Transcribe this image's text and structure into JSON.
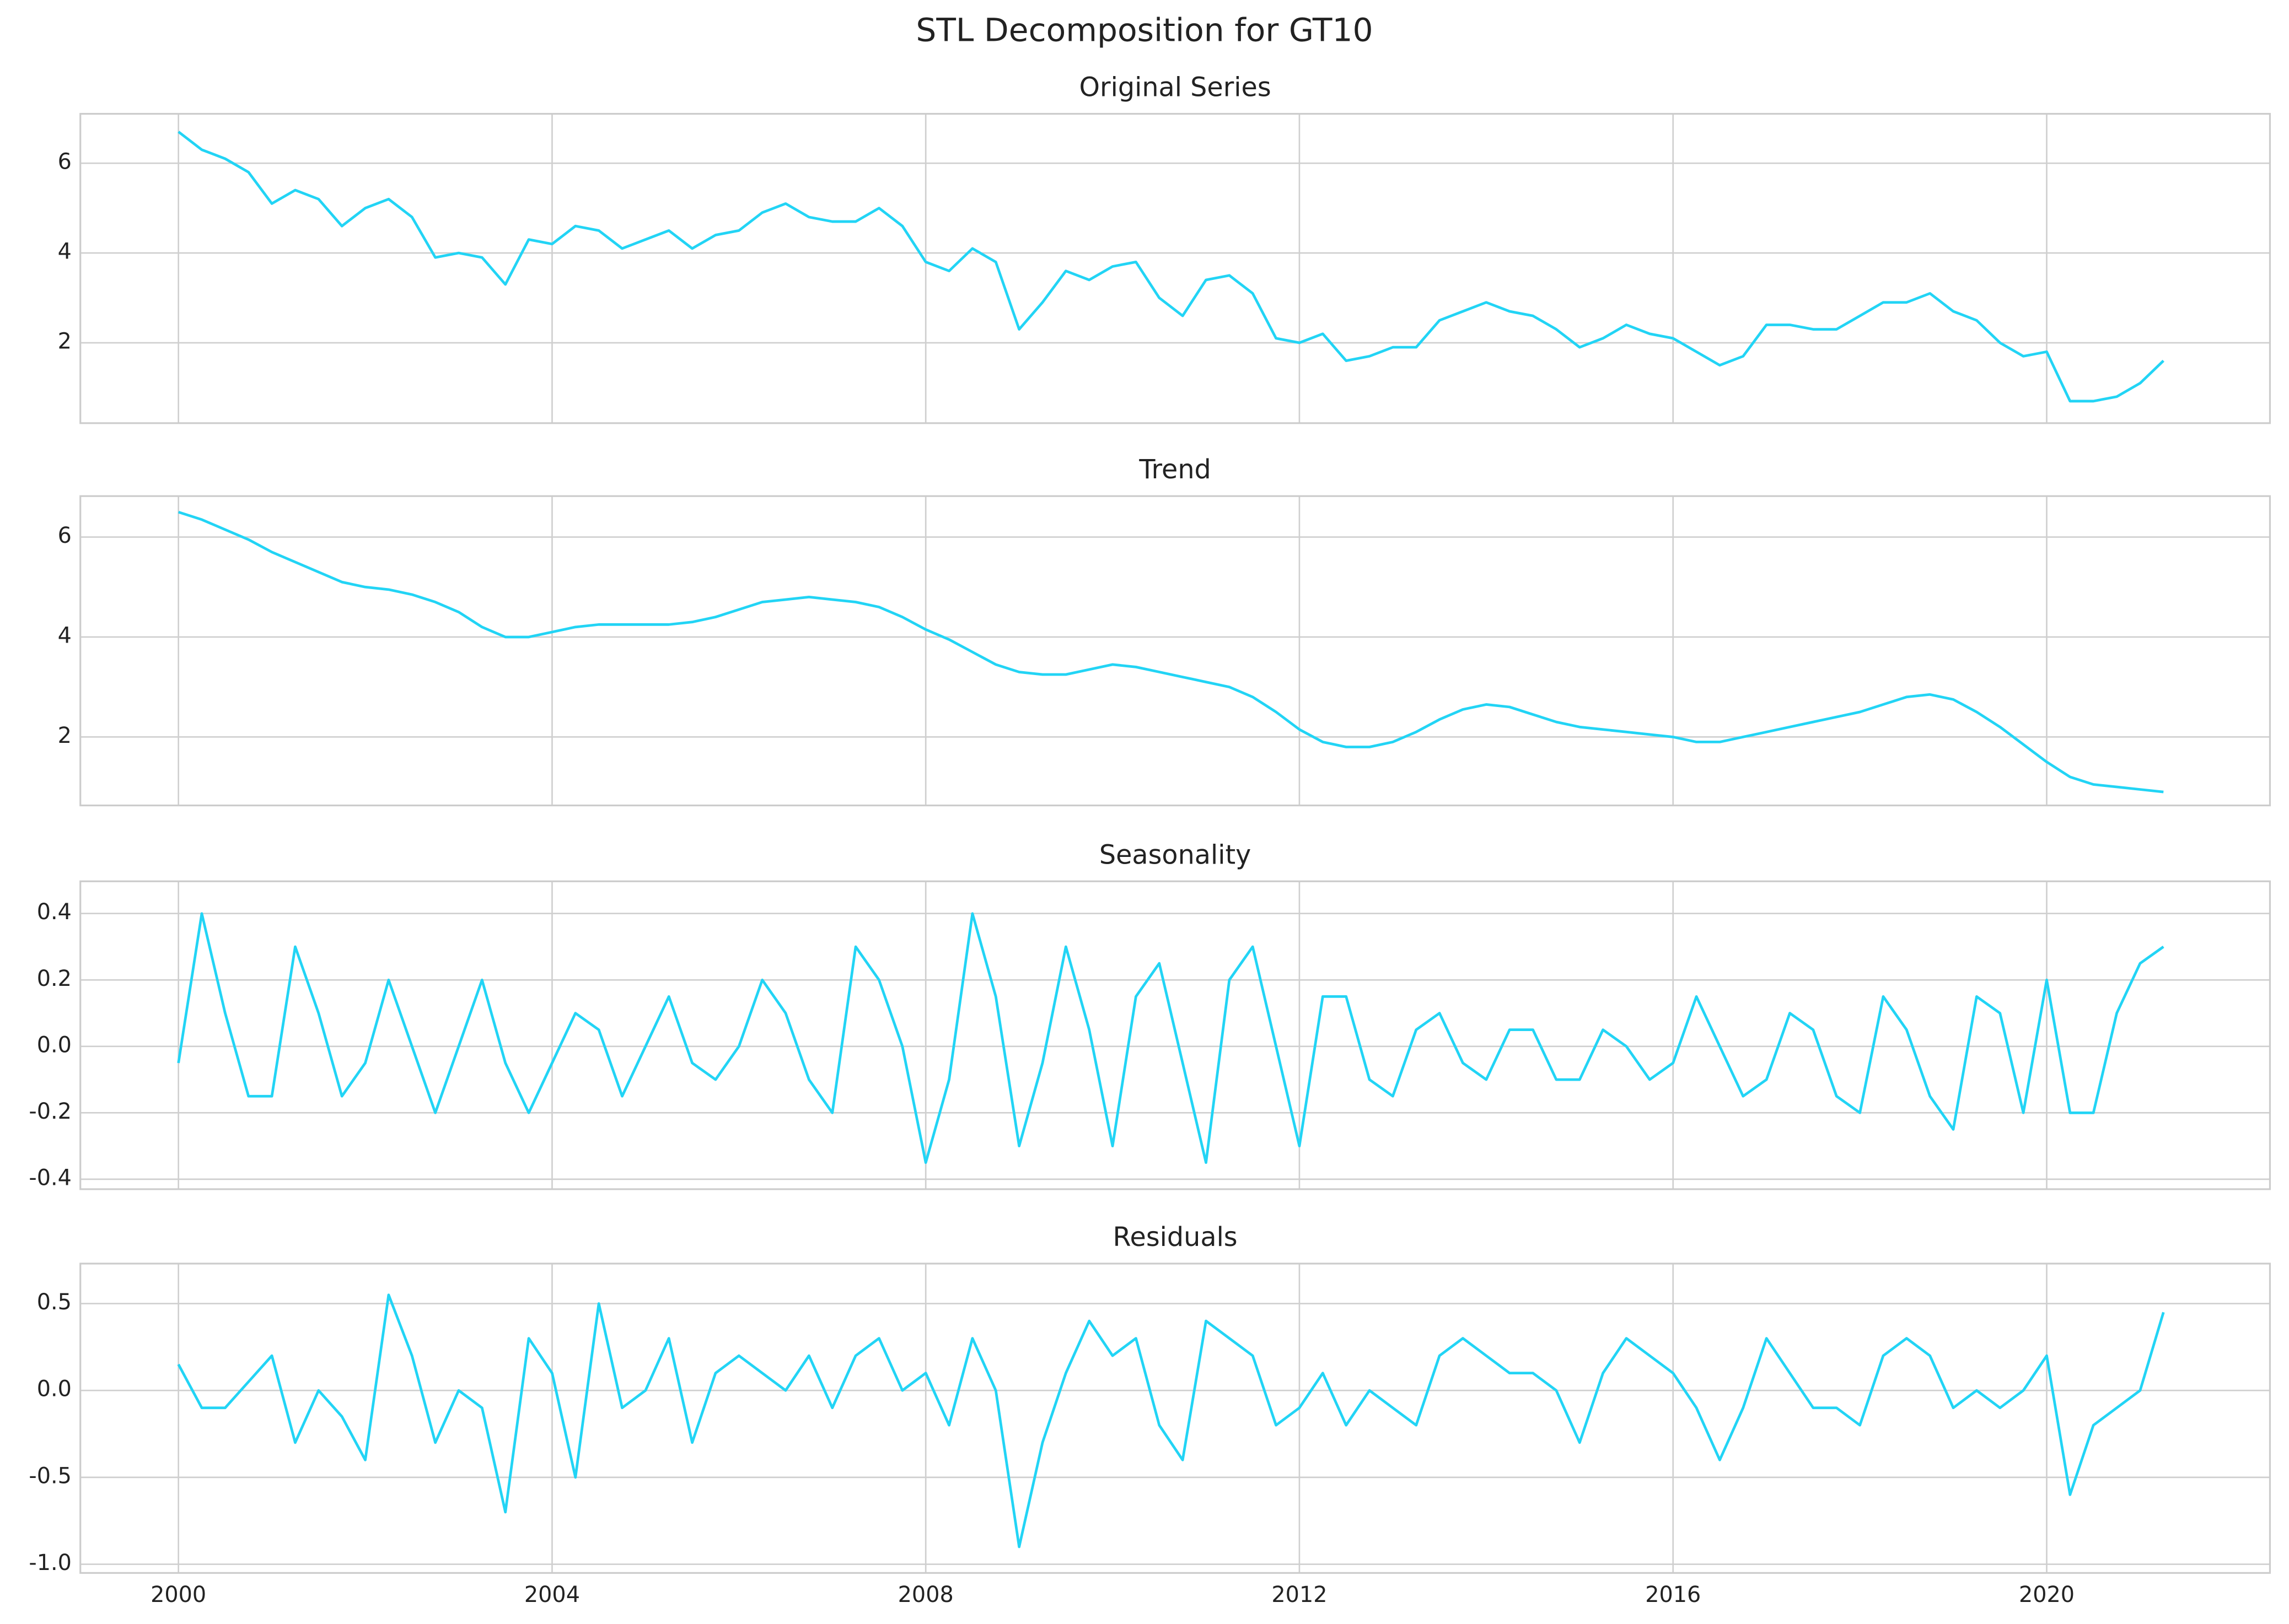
{
  "title": "STL Decomposition for GT10",
  "chart_data": [
    {
      "type": "line",
      "title": "Original Series",
      "color": "#22d4f5",
      "grid": true,
      "x": [
        2000,
        2000.25,
        2000.5,
        2000.75,
        2001,
        2001.25,
        2001.5,
        2001.75,
        2002,
        2002.25,
        2002.5,
        2002.75,
        2003,
        2003.25,
        2003.5,
        2003.75,
        2004,
        2004.25,
        2004.5,
        2004.75,
        2005,
        2005.25,
        2005.5,
        2005.75,
        2006,
        2006.25,
        2006.5,
        2006.75,
        2007,
        2007.25,
        2007.5,
        2007.75,
        2008,
        2008.25,
        2008.5,
        2008.75,
        2009,
        2009.25,
        2009.5,
        2009.75,
        2010,
        2010.25,
        2010.5,
        2010.75,
        2011,
        2011.25,
        2011.5,
        2011.75,
        2012,
        2012.25,
        2012.5,
        2012.75,
        2013,
        2013.25,
        2013.5,
        2013.75,
        2014,
        2014.25,
        2014.5,
        2014.75,
        2015,
        2015.25,
        2015.5,
        2015.75,
        2016,
        2016.25,
        2016.5,
        2016.75,
        2017,
        2017.25,
        2017.5,
        2017.75,
        2018,
        2018.25,
        2018.5,
        2018.75,
        2019,
        2019.25,
        2019.5,
        2019.75,
        2020,
        2020.25,
        2020.5,
        2020.75,
        2021,
        2021.25
      ],
      "values": [
        6.7,
        6.3,
        6.1,
        5.8,
        5.1,
        5.4,
        5.2,
        4.6,
        5.0,
        5.2,
        4.8,
        3.9,
        4.0,
        3.9,
        3.3,
        4.3,
        4.2,
        4.6,
        4.5,
        4.1,
        4.3,
        4.5,
        4.1,
        4.4,
        4.5,
        4.9,
        5.1,
        4.8,
        4.7,
        4.7,
        5.0,
        4.6,
        3.8,
        3.6,
        4.1,
        3.8,
        2.3,
        2.9,
        3.6,
        3.4,
        3.7,
        3.8,
        3.0,
        2.6,
        3.4,
        3.5,
        3.1,
        2.1,
        2.0,
        2.2,
        1.6,
        1.7,
        1.9,
        1.9,
        2.5,
        2.7,
        2.9,
        2.7,
        2.6,
        2.3,
        1.9,
        2.1,
        2.4,
        2.2,
        2.1,
        1.8,
        1.5,
        1.7,
        2.4,
        2.4,
        2.3,
        2.3,
        2.6,
        2.9,
        2.9,
        3.1,
        2.7,
        2.5,
        2.0,
        1.7,
        1.8,
        0.7,
        0.7,
        0.8,
        1.1,
        1.6
      ],
      "xlim": [
        1998.95,
        2022.39
      ],
      "xticks": [
        2000,
        2004,
        2008,
        2012,
        2016,
        2020
      ],
      "ylim": [
        0.21,
        7.1
      ],
      "yticks": [
        2,
        4,
        6
      ]
    },
    {
      "type": "line",
      "title": "Trend",
      "color": "#22d4f5",
      "grid": true,
      "x": [
        2000,
        2000.25,
        2000.5,
        2000.75,
        2001,
        2001.25,
        2001.5,
        2001.75,
        2002,
        2002.25,
        2002.5,
        2002.75,
        2003,
        2003.25,
        2003.5,
        2003.75,
        2004,
        2004.25,
        2004.5,
        2004.75,
        2005,
        2005.25,
        2005.5,
        2005.75,
        2006,
        2006.25,
        2006.5,
        2006.75,
        2007,
        2007.25,
        2007.5,
        2007.75,
        2008,
        2008.25,
        2008.5,
        2008.75,
        2009,
        2009.25,
        2009.5,
        2009.75,
        2010,
        2010.25,
        2010.5,
        2010.75,
        2011,
        2011.25,
        2011.5,
        2011.75,
        2012,
        2012.25,
        2012.5,
        2012.75,
        2013,
        2013.25,
        2013.5,
        2013.75,
        2014,
        2014.25,
        2014.5,
        2014.75,
        2015,
        2015.25,
        2015.5,
        2015.75,
        2016,
        2016.25,
        2016.5,
        2016.75,
        2017,
        2017.25,
        2017.5,
        2017.75,
        2018,
        2018.25,
        2018.5,
        2018.75,
        2019,
        2019.25,
        2019.5,
        2019.75,
        2020,
        2020.25,
        2020.5,
        2020.75,
        2021,
        2021.25
      ],
      "values": [
        6.5,
        6.35,
        6.15,
        5.95,
        5.7,
        5.5,
        5.3,
        5.1,
        5.0,
        4.95,
        4.85,
        4.7,
        4.5,
        4.2,
        4.0,
        4.0,
        4.1,
        4.2,
        4.25,
        4.25,
        4.25,
        4.25,
        4.3,
        4.4,
        4.55,
        4.7,
        4.75,
        4.8,
        4.75,
        4.7,
        4.6,
        4.4,
        4.15,
        3.95,
        3.7,
        3.45,
        3.3,
        3.25,
        3.25,
        3.35,
        3.45,
        3.4,
        3.3,
        3.2,
        3.1,
        3.0,
        2.8,
        2.5,
        2.15,
        1.9,
        1.8,
        1.8,
        1.9,
        2.1,
        2.35,
        2.55,
        2.65,
        2.6,
        2.45,
        2.3,
        2.2,
        2.15,
        2.1,
        2.05,
        2.0,
        1.9,
        1.9,
        2.0,
        2.1,
        2.2,
        2.3,
        2.4,
        2.5,
        2.65,
        2.8,
        2.85,
        2.75,
        2.5,
        2.2,
        1.85,
        1.5,
        1.2,
        1.05,
        1.0,
        0.95,
        0.9
      ],
      "xlim": [
        1998.95,
        2022.39
      ],
      "xticks": [
        2000,
        2004,
        2008,
        2012,
        2016,
        2020
      ],
      "ylim": [
        0.63,
        6.82
      ],
      "yticks": [
        2,
        4,
        6
      ]
    },
    {
      "type": "line",
      "title": "Seasonality",
      "color": "#22d4f5",
      "grid": true,
      "x": [
        2000,
        2000.25,
        2000.5,
        2000.75,
        2001,
        2001.25,
        2001.5,
        2001.75,
        2002,
        2002.25,
        2002.5,
        2002.75,
        2003,
        2003.25,
        2003.5,
        2003.75,
        2004,
        2004.25,
        2004.5,
        2004.75,
        2005,
        2005.25,
        2005.5,
        2005.75,
        2006,
        2006.25,
        2006.5,
        2006.75,
        2007,
        2007.25,
        2007.5,
        2007.75,
        2008,
        2008.25,
        2008.5,
        2008.75,
        2009,
        2009.25,
        2009.5,
        2009.75,
        2010,
        2010.25,
        2010.5,
        2010.75,
        2011,
        2011.25,
        2011.5,
        2011.75,
        2012,
        2012.25,
        2012.5,
        2012.75,
        2013,
        2013.25,
        2013.5,
        2013.75,
        2014,
        2014.25,
        2014.5,
        2014.75,
        2015,
        2015.25,
        2015.5,
        2015.75,
        2016,
        2016.25,
        2016.5,
        2016.75,
        2017,
        2017.25,
        2017.5,
        2017.75,
        2018,
        2018.25,
        2018.5,
        2018.75,
        2019,
        2019.25,
        2019.5,
        2019.75,
        2020,
        2020.25,
        2020.5,
        2020.75,
        2021,
        2021.25
      ],
      "values": [
        -0.05,
        0.4,
        0.1,
        -0.15,
        -0.15,
        0.3,
        0.1,
        -0.15,
        -0.05,
        0.2,
        0.0,
        -0.2,
        0.0,
        0.2,
        -0.05,
        -0.2,
        -0.05,
        0.1,
        0.05,
        -0.15,
        0.0,
        0.15,
        -0.05,
        -0.1,
        0.0,
        0.2,
        0.1,
        -0.1,
        -0.2,
        0.3,
        0.2,
        0.0,
        -0.35,
        -0.1,
        0.4,
        0.15,
        -0.3,
        -0.05,
        0.3,
        0.05,
        -0.3,
        0.15,
        0.25,
        -0.05,
        -0.35,
        0.2,
        0.3,
        0.0,
        -0.3,
        0.15,
        0.15,
        -0.1,
        -0.15,
        0.05,
        0.1,
        -0.05,
        -0.1,
        0.05,
        0.05,
        -0.1,
        -0.1,
        0.05,
        0.0,
        -0.1,
        -0.05,
        0.15,
        0.0,
        -0.15,
        -0.1,
        0.1,
        0.05,
        -0.15,
        -0.2,
        0.15,
        0.05,
        -0.15,
        -0.25,
        0.15,
        0.1,
        -0.2,
        0.2,
        -0.2,
        -0.2,
        0.1,
        0.25,
        0.3
      ],
      "xlim": [
        1998.95,
        2022.39
      ],
      "xticks": [
        2000,
        2004,
        2008,
        2012,
        2016,
        2020
      ],
      "ylim": [
        -0.43,
        0.497
      ],
      "yticks": [
        -0.4,
        -0.2,
        {
          "value": 0,
          "label": "0.0"
        },
        0.2,
        0.4
      ]
    },
    {
      "type": "line",
      "title": "Residuals",
      "color": "#22d4f5",
      "grid": true,
      "x": [
        2000,
        2000.25,
        2000.5,
        2000.75,
        2001,
        2001.25,
        2001.5,
        2001.75,
        2002,
        2002.25,
        2002.5,
        2002.75,
        2003,
        2003.25,
        2003.5,
        2003.75,
        2004,
        2004.25,
        2004.5,
        2004.75,
        2005,
        2005.25,
        2005.5,
        2005.75,
        2006,
        2006.25,
        2006.5,
        2006.75,
        2007,
        2007.25,
        2007.5,
        2007.75,
        2008,
        2008.25,
        2008.5,
        2008.75,
        2009,
        2009.25,
        2009.5,
        2009.75,
        2010,
        2010.25,
        2010.5,
        2010.75,
        2011,
        2011.25,
        2011.5,
        2011.75,
        2012,
        2012.25,
        2012.5,
        2012.75,
        2013,
        2013.25,
        2013.5,
        2013.75,
        2014,
        2014.25,
        2014.5,
        2014.75,
        2015,
        2015.25,
        2015.5,
        2015.75,
        2016,
        2016.25,
        2016.5,
        2016.75,
        2017,
        2017.25,
        2017.5,
        2017.75,
        2018,
        2018.25,
        2018.5,
        2018.75,
        2019,
        2019.25,
        2019.5,
        2019.75,
        2020,
        2020.25,
        2020.5,
        2020.75,
        2021,
        2021.25
      ],
      "values": [
        0.15,
        -0.1,
        -0.1,
        0.05,
        0.2,
        -0.3,
        0.0,
        -0.15,
        -0.4,
        0.55,
        0.2,
        -0.3,
        0.0,
        -0.1,
        -0.7,
        0.3,
        0.1,
        -0.5,
        0.5,
        -0.1,
        0.0,
        0.3,
        -0.3,
        0.1,
        0.2,
        0.1,
        0.0,
        0.2,
        -0.1,
        0.2,
        0.3,
        0.0,
        0.1,
        -0.2,
        0.3,
        0.0,
        -0.9,
        -0.3,
        0.1,
        0.4,
        0.2,
        0.3,
        -0.2,
        -0.4,
        0.4,
        0.3,
        0.2,
        -0.2,
        -0.1,
        0.1,
        -0.2,
        0.0,
        -0.1,
        -0.2,
        0.2,
        0.3,
        0.2,
        0.1,
        0.1,
        0.0,
        -0.3,
        0.1,
        0.3,
        0.2,
        0.1,
        -0.1,
        -0.4,
        -0.1,
        0.3,
        0.1,
        -0.1,
        -0.1,
        -0.2,
        0.2,
        0.3,
        0.2,
        -0.1,
        0.0,
        -0.1,
        0.0,
        0.2,
        -0.6,
        -0.2,
        -0.1,
        0.0,
        0.45
      ],
      "xlim": [
        1998.95,
        2022.39
      ],
      "xticks": [
        2000,
        2004,
        2008,
        2012,
        2016,
        2020
      ],
      "ylim": [
        -1.05,
        0.73
      ],
      "yticks": [
        {
          "value": -1,
          "label": "-1.0"
        },
        -0.5,
        {
          "value": 0,
          "label": "0.0"
        },
        0.5
      ]
    }
  ]
}
